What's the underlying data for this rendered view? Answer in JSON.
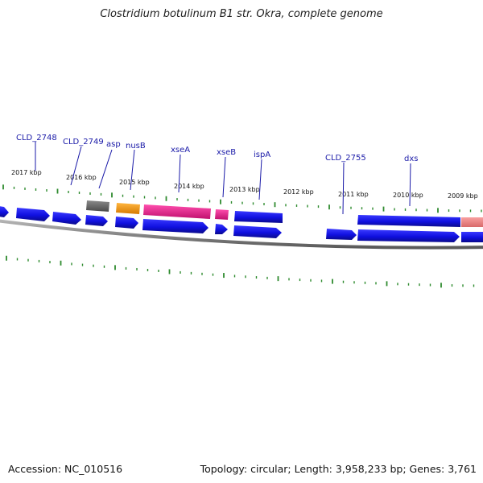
{
  "title": "Clostridium botulinum B1 str. Okra, complete genome",
  "footer": {
    "accession": "Accession: NC_010516",
    "summary": "Topology: circular; Length: 3,958,233 bp; Genes: 3,761"
  },
  "colors": {
    "cds": "#1414e6",
    "trna": "#6e6e6e",
    "rrna_orange": "#f39c12",
    "pink": "#e8238f",
    "light_red": "#f08080",
    "tick": "#2e8b2e",
    "backbone": "#7a7a7a",
    "label": "#1a1aa8"
  },
  "scale": {
    "unit": "kbp",
    "ticks": [
      "2017 kbp",
      "2016 kbp",
      "2015 kbp",
      "2014 kbp",
      "2013 kbp",
      "2012 kbp",
      "2011 kbp",
      "2010 kbp",
      "2009 kbp"
    ]
  },
  "gene_labels": [
    "CLD_2748",
    "CLD_2749",
    "asp",
    "nusB",
    "xseA",
    "xseB",
    "ispA",
    "CLD_2755",
    "dxs"
  ]
}
